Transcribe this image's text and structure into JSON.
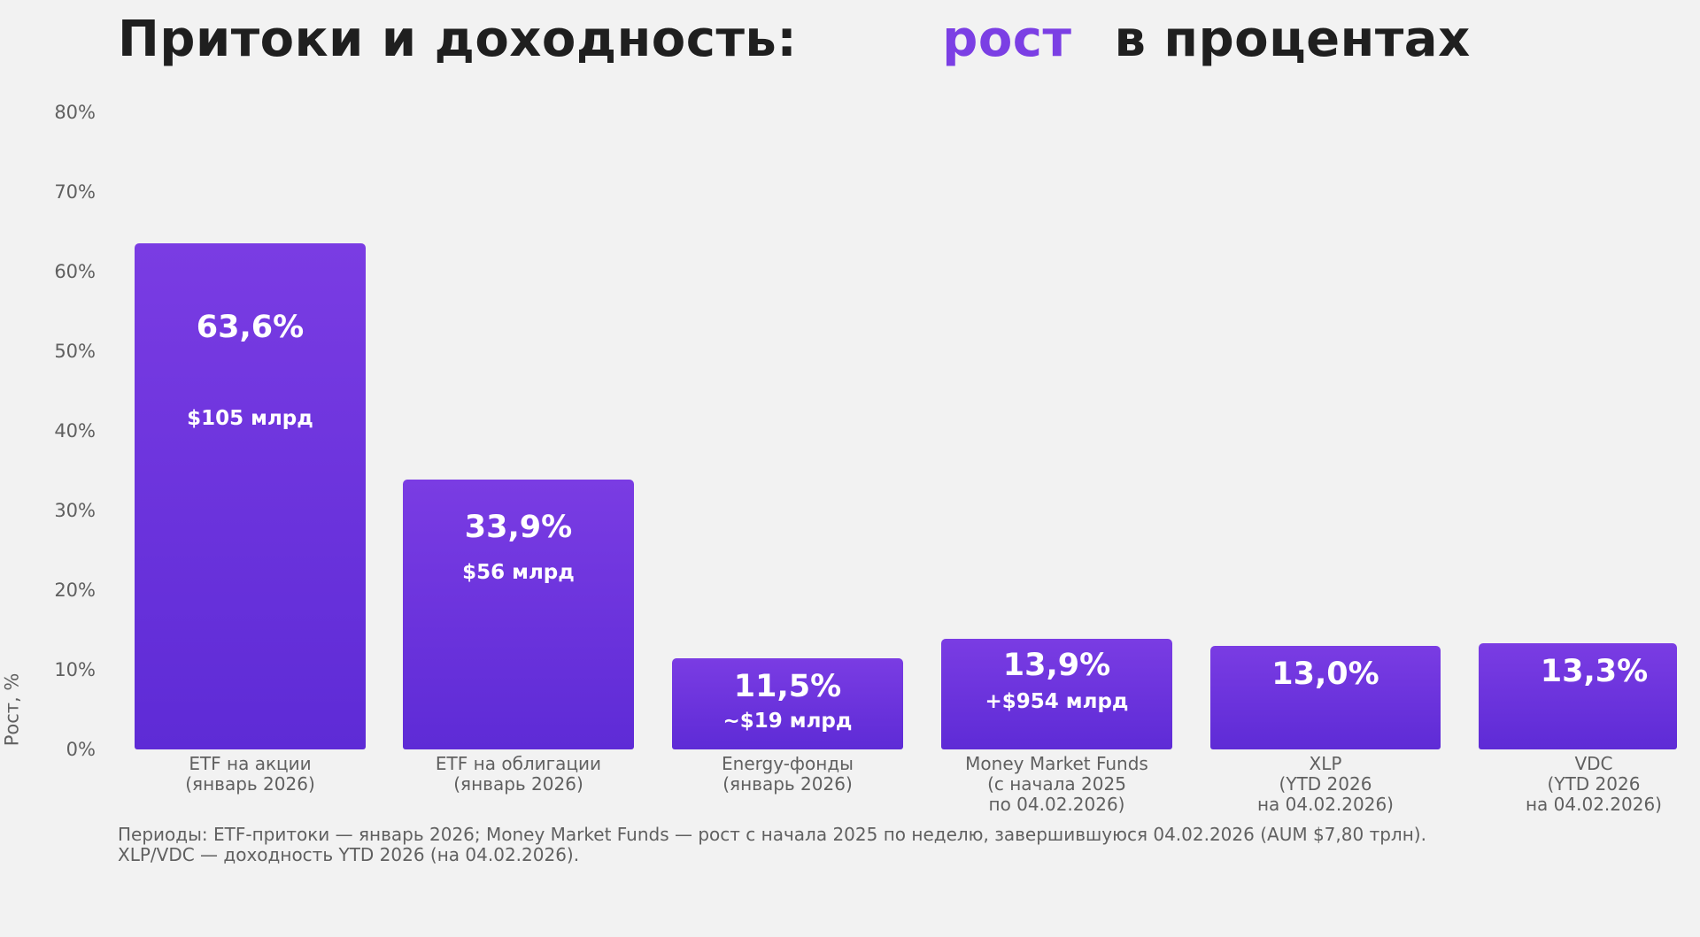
{
  "title": {
    "part1": "Притоки и доходность:",
    "accent": "рост",
    "part2": "в процентах",
    "accent_color": "#7b3fe4"
  },
  "axis": {
    "ylabel": "Рост, %",
    "yticks": [
      "0%",
      "10%",
      "20%",
      "30%",
      "40%",
      "50%",
      "60%",
      "70%",
      "80%"
    ]
  },
  "bars": [
    {
      "pct": "63,6%",
      "sub": "$105 млрд",
      "label": [
        "ETF на акции",
        "(январь 2026)"
      ]
    },
    {
      "pct": "33,9%",
      "sub": "$56 млрд",
      "label": [
        "ETF на облигации",
        "(январь 2026)"
      ]
    },
    {
      "pct": "11,5%",
      "sub": "~$19 млрд",
      "label": [
        "Energy-фонды",
        "(январь 2026)"
      ]
    },
    {
      "pct": "13,9%",
      "sub": "+$954 млрд",
      "label": [
        "Money Market Funds",
        "(с начала 2025",
        "по 04.02.2026)"
      ]
    },
    {
      "pct": "13,0%",
      "sub": "",
      "label": [
        "XLP",
        "(YTD 2026",
        "на 04.02.2026)"
      ]
    },
    {
      "pct": "13,3%",
      "sub": "",
      "label": [
        "VDC",
        "(YTD 2026",
        "на 04.02.2026)"
      ]
    }
  ],
  "footnote": {
    "line1": "Периоды: ETF-притоки — январь 2026; Money Market Funds — рост с начала 2025 по неделю, завершившуюся 04.02.2026 (AUM $7,80 трлн).",
    "line2": "XLP/VDC — доходность YTD 2026 (на 04.02.2026)."
  },
  "colors": {
    "bar_top": "#7a3ce3",
    "bar_bottom": "#5e2bd6",
    "background": "#f2f2f2",
    "text_gray": "#606060"
  },
  "chart_data": {
    "type": "bar",
    "title": "Притоки и доходность: рост в процентах",
    "xlabel": "",
    "ylabel": "Рост, %",
    "ylim": [
      0,
      80
    ],
    "grid": false,
    "categories": [
      "ETF на акции (январь 2026)",
      "ETF на облигации (январь 2026)",
      "Energy-фонды (январь 2026)",
      "Money Market Funds (с начала 2025 по 04.02.2026)",
      "XLP (YTD 2026 на 04.02.2026)",
      "VDC (YTD 2026 на 04.02.2026)"
    ],
    "values": [
      63.6,
      33.9,
      11.5,
      13.9,
      13.0,
      13.3
    ],
    "annotations": [
      "$105 млрд",
      "$56 млрд",
      "~$19 млрд",
      "+$954 млрд",
      "",
      ""
    ],
    "yticks": [
      0,
      10,
      20,
      30,
      40,
      50,
      60,
      70,
      80
    ]
  }
}
